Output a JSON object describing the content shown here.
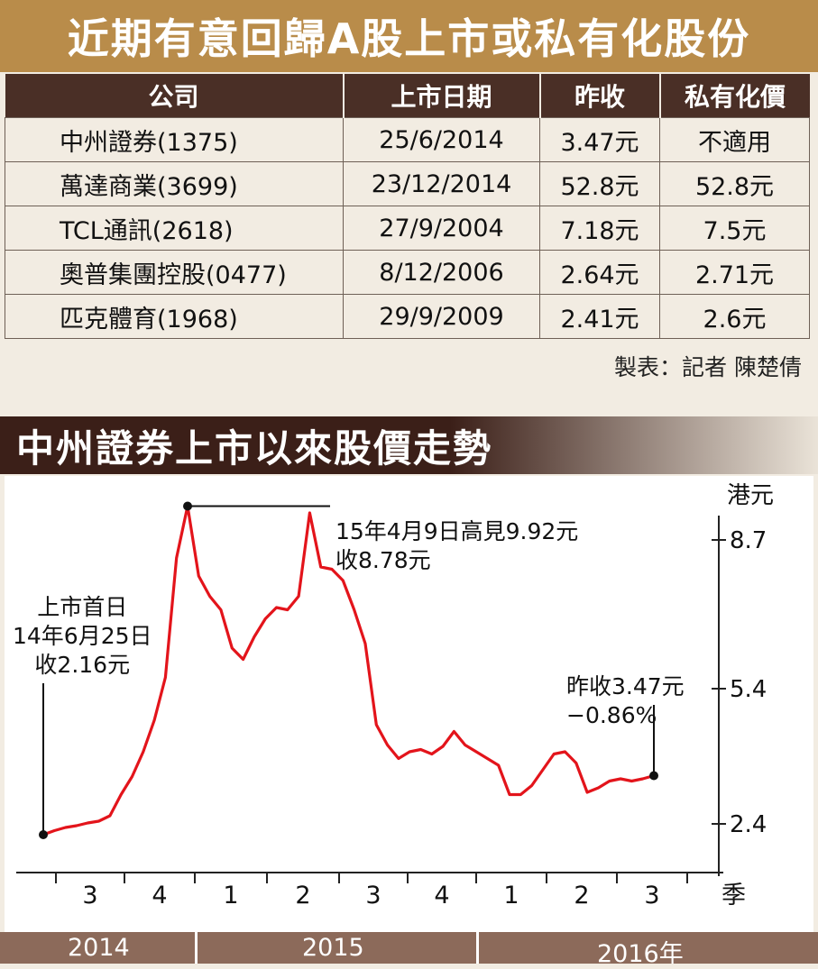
{
  "header": {
    "title": "近期有意回歸A股上市或私有化股份"
  },
  "table": {
    "columns": [
      "公司",
      "上市日期",
      "昨收",
      "私有化價"
    ],
    "rows": [
      [
        "中州證券(1375)",
        "25/6/2014",
        "3.47元",
        "不適用"
      ],
      [
        "萬達商業(3699)",
        "23/12/2014",
        "52.8元",
        "52.8元"
      ],
      [
        "TCL通訊(2618)",
        "27/9/2004",
        "7.18元",
        "7.5元"
      ],
      [
        "奧普集團控股(0477)",
        "8/12/2006",
        "2.64元",
        "2.71元"
      ],
      [
        "匹克體育(1968)",
        "29/9/2009",
        "2.41元",
        "2.6元"
      ]
    ]
  },
  "credit": "製表：記者 陳楚倩",
  "chart_title": "中州證券上市以來股價走勢",
  "chart_data": {
    "type": "line",
    "title": "中州證券上市以來股價走勢",
    "ylabel": "港元",
    "yticks": [
      2.4,
      5.4,
      8.7
    ],
    "ylim": [
      1.2,
      9.5
    ],
    "xlabel": "季",
    "quarters": [
      "3",
      "4",
      "1",
      "2",
      "3",
      "4",
      "1",
      "2",
      "3"
    ],
    "years": [
      "2014",
      "2015",
      "2016年"
    ],
    "series": [
      {
        "values": [
          2.16,
          2.25,
          2.32,
          2.36,
          2.42,
          2.46,
          2.58,
          3.05,
          3.45,
          4.0,
          4.7,
          5.65,
          8.3,
          9.45,
          7.9,
          7.45,
          7.15,
          6.3,
          6.05,
          6.55,
          6.95,
          7.2,
          7.15,
          7.45,
          9.3,
          8.1,
          8.05,
          7.8,
          7.15,
          6.4,
          4.6,
          4.15,
          3.85,
          4.0,
          4.05,
          3.95,
          4.12,
          4.45,
          4.15,
          4.0,
          3.85,
          3.7,
          3.05,
          3.05,
          3.25,
          3.6,
          3.95,
          4.0,
          3.75,
          3.1,
          3.2,
          3.35,
          3.4,
          3.35,
          3.4,
          3.47
        ],
        "color": "#e3141b"
      }
    ],
    "annotations": [
      {
        "lines": [
          "上市首日",
          "14年6月25日",
          "收2.16元"
        ]
      },
      {
        "lines": [
          "15年4月9日高見9.92元",
          "收8.78元"
        ]
      },
      {
        "lines": [
          "昨收3.47元",
          "−0.86%"
        ]
      }
    ]
  },
  "colors": {
    "title_bg": "#b98c4a",
    "header_bg": "#4a2f26",
    "line": "#e3141b",
    "year_bar": "#8c6a5a"
  }
}
